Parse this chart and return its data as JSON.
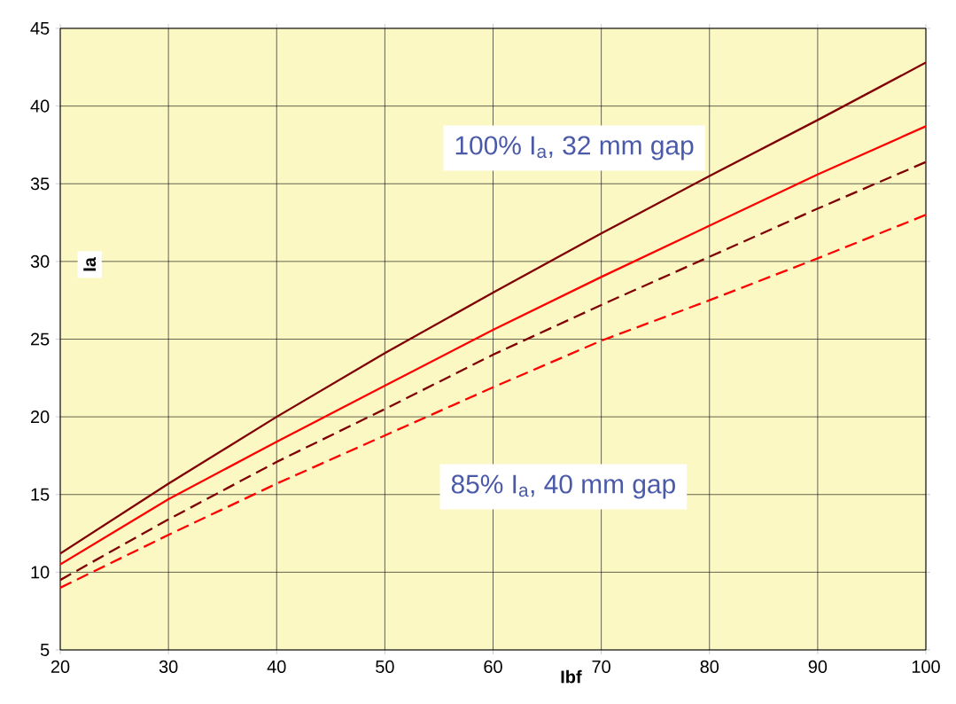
{
  "chart_data": {
    "type": "line",
    "x": [
      20,
      30,
      40,
      50,
      60,
      70,
      80,
      90,
      100
    ],
    "xlabel": "Ibf",
    "ylabel": "Ia",
    "xlim": [
      20,
      100
    ],
    "xticks": [
      20,
      30,
      40,
      50,
      60,
      70,
      80,
      90,
      100
    ],
    "ylim": [
      5,
      45
    ],
    "yticks": [
      5,
      10,
      15,
      20,
      25,
      30,
      35,
      40,
      45
    ],
    "grid": true,
    "marker": "none",
    "series": [
      {
        "color": "#800000",
        "line_style": "solid",
        "values": [
          11.2,
          15.7,
          20.0,
          24.1,
          28.0,
          31.8,
          35.5,
          39.1,
          42.8
        ]
      },
      {
        "color": "#ff0000",
        "line_style": "solid",
        "values": [
          10.5,
          14.7,
          18.4,
          22.0,
          25.6,
          29.0,
          32.3,
          35.6,
          38.7
        ]
      },
      {
        "color": "#800000",
        "line_style": "dashed",
        "values": [
          9.5,
          13.4,
          17.1,
          20.5,
          24.0,
          27.2,
          30.3,
          33.4,
          36.4
        ]
      },
      {
        "color": "#ff0000",
        "line_style": "dashed",
        "values": [
          9.0,
          12.4,
          15.7,
          18.8,
          21.9,
          24.9,
          27.5,
          30.2,
          33.0
        ]
      }
    ],
    "annotations": [
      "100% I$_{a}$, 32 mm gap",
      "85% I$_{a}$, 40 mm gap"
    ]
  }
}
